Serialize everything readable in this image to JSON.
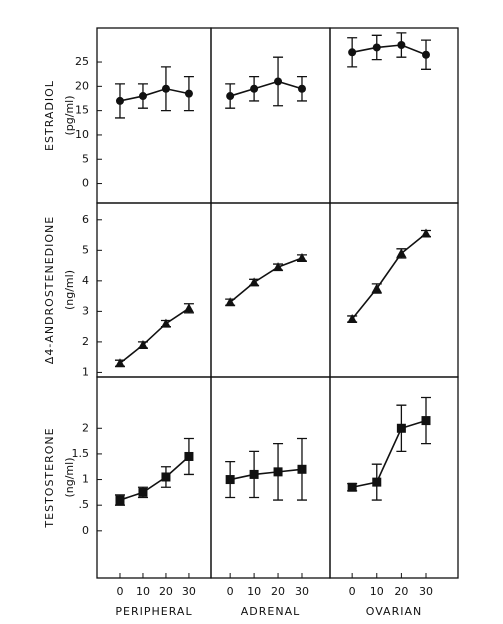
{
  "chart_data": [
    {
      "type": "line",
      "marker": "circle",
      "ylabel": "ESTRADIOL",
      "yunit": "(pg/ml)",
      "x": [
        0,
        10,
        20,
        30
      ],
      "values": [
        17,
        18,
        19.5,
        18.5
      ],
      "errors": [
        3.5,
        2.5,
        4.5,
        3.5
      ],
      "xlim": [
        -10,
        39.6
      ],
      "ylim": [
        -4,
        32
      ],
      "yticks": [
        0,
        5,
        10,
        15,
        20,
        25
      ]
    },
    {
      "type": "line",
      "marker": "circle",
      "x": [
        0,
        10,
        20,
        30
      ],
      "values": [
        18,
        19.5,
        21,
        19.5
      ],
      "errors": [
        2.5,
        2.5,
        5,
        2.5
      ],
      "xlim": [
        -8,
        41.7
      ],
      "ylim": [
        -4,
        32
      ]
    },
    {
      "type": "line",
      "marker": "circle",
      "x": [
        0,
        10,
        20,
        30
      ],
      "values": [
        27,
        28,
        28.5,
        26.5
      ],
      "errors": [
        3,
        2.5,
        2.5,
        3
      ],
      "xlim": [
        -9,
        43
      ],
      "ylim": [
        -4,
        32
      ]
    },
    {
      "type": "line",
      "marker": "triangle",
      "ylabel": "Δ4-ANDROSTENEDIONE",
      "yunit": "(ng/ml)",
      "x": [
        0,
        10,
        20,
        30
      ],
      "values": [
        1.3,
        1.9,
        2.6,
        3.1
      ],
      "errors": [
        0.1,
        0.1,
        0.1,
        0.15
      ],
      "xlim": [
        -10,
        39.6
      ],
      "ylim": [
        0.85,
        6.55
      ],
      "yticks": [
        1,
        2,
        3,
        4,
        5,
        6
      ]
    },
    {
      "type": "line",
      "marker": "triangle",
      "x": [
        0,
        10,
        20,
        30
      ],
      "values": [
        3.3,
        3.95,
        4.45,
        4.75
      ],
      "errors": [
        0.1,
        0.1,
        0.1,
        0.1
      ],
      "xlim": [
        -8,
        41.7
      ],
      "ylim": [
        0.85,
        6.55
      ]
    },
    {
      "type": "line",
      "marker": "triangle",
      "x": [
        0,
        10,
        20,
        30
      ],
      "values": [
        2.75,
        3.75,
        4.9,
        5.55
      ],
      "errors": [
        0.1,
        0.15,
        0.15,
        0.1
      ],
      "xlim": [
        -9,
        43
      ],
      "ylim": [
        0.85,
        6.55
      ]
    },
    {
      "type": "line",
      "marker": "square",
      "ylabel": "TESTOSTERONE",
      "yunit": "(ng/ml)",
      "x": [
        0,
        10,
        20,
        30
      ],
      "values": [
        0.6,
        0.75,
        1.05,
        1.45
      ],
      "errors": [
        0.1,
        0.1,
        0.2,
        0.35
      ],
      "xlim": [
        -10,
        39.6
      ],
      "ylim": [
        -0.92,
        3.0
      ],
      "yticks": [
        0,
        {
          "value": 0.5,
          "label": ".5"
        },
        1,
        1.5,
        2
      ],
      "xticks": [
        0,
        10,
        20,
        30
      ],
      "xlabel": "PERIPHERAL"
    },
    {
      "type": "line",
      "marker": "square",
      "x": [
        0,
        10,
        20,
        30
      ],
      "values": [
        1.0,
        1.1,
        1.15,
        1.2
      ],
      "errors": [
        0.35,
        0.45,
        0.55,
        0.6
      ],
      "xlim": [
        -8,
        41.7
      ],
      "ylim": [
        -0.92,
        3.0
      ],
      "xticks": [
        0,
        10,
        20,
        30
      ],
      "xlabel": "ADRENAL"
    },
    {
      "type": "line",
      "marker": "square",
      "x": [
        0,
        10,
        20,
        30
      ],
      "values": [
        0.85,
        0.95,
        2.0,
        2.15
      ],
      "errors": [
        0.07,
        0.35,
        0.45,
        0.45
      ],
      "xlim": [
        -9,
        43
      ],
      "ylim": [
        -0.92,
        3.0
      ],
      "xticks": [
        0,
        10,
        20,
        30
      ],
      "xlabel": "OVARIAN"
    }
  ]
}
